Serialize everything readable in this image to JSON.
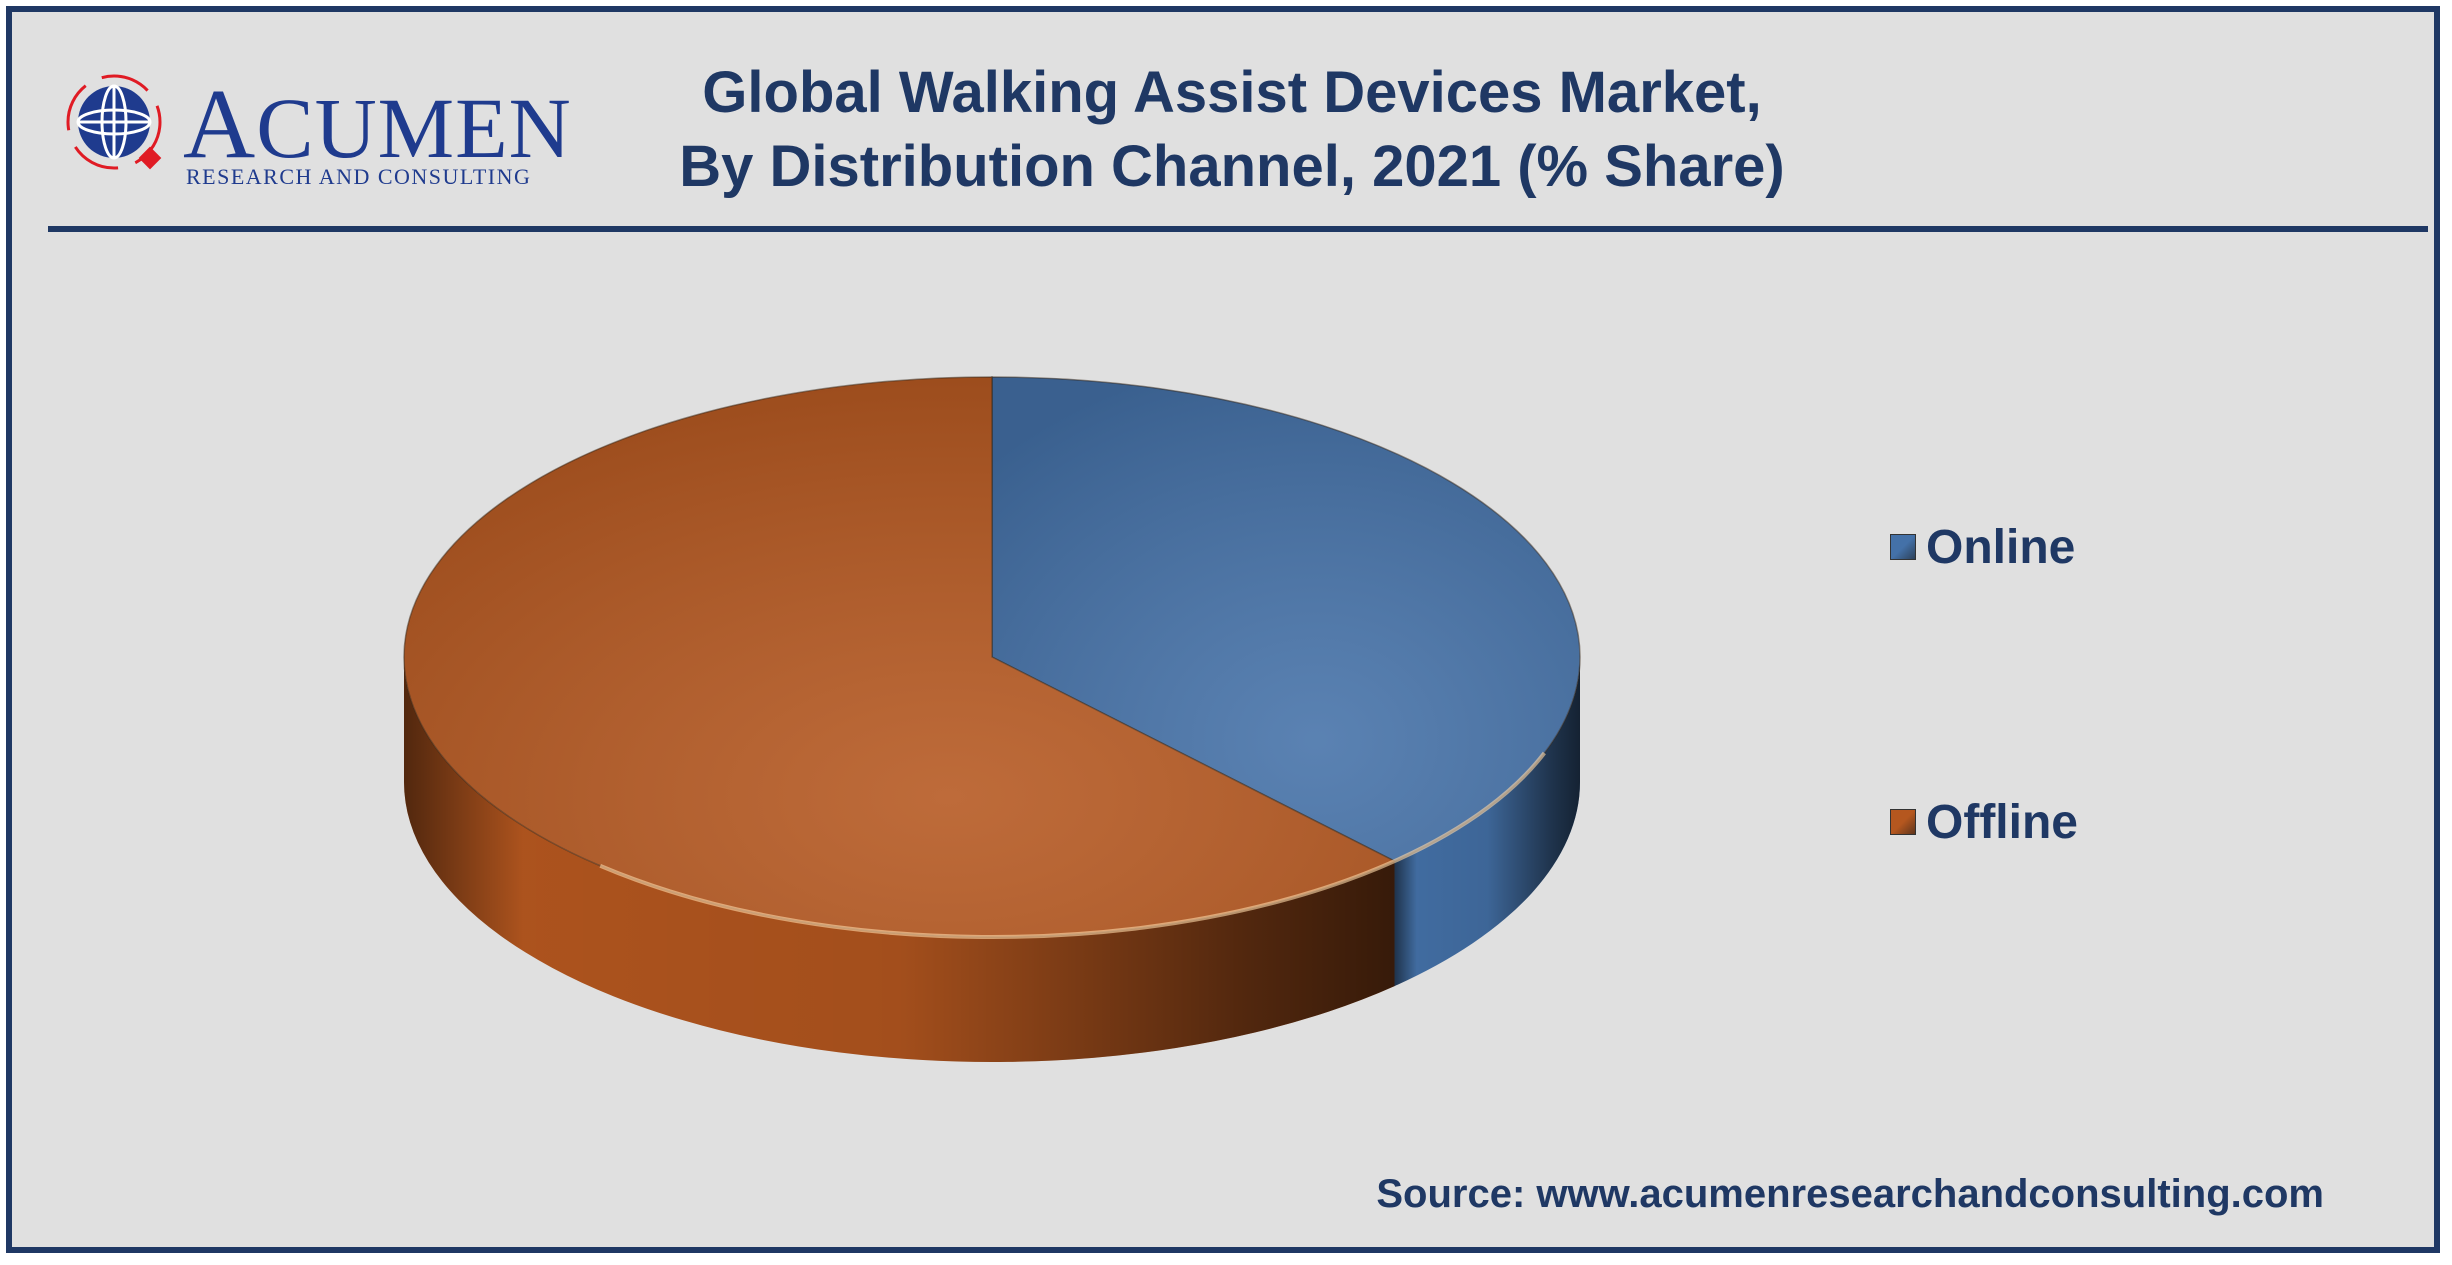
{
  "logo": {
    "initial": "A",
    "wordmark_rest": "CUMEN",
    "subtitle": "RESEARCH AND CONSULTING",
    "color": "#1f3b8e",
    "accent": "#e01b24"
  },
  "title_line1": "Global Walking Assist Devices Market,",
  "title_line2": "By Distribution Channel, 2021 (% Share)",
  "source": "Source: www.acumenresearchandconsulting.com",
  "chart_data": {
    "type": "pie",
    "title": "Global Walking Assist Devices Market, By Distribution Channel, 2021 (% Share)",
    "style": "3d",
    "legend_position": "right",
    "series": [
      {
        "name": "Online",
        "value": 38,
        "color": "#4471a8"
      },
      {
        "name": "Offline",
        "value": 62,
        "color": "#b5571f"
      }
    ]
  }
}
